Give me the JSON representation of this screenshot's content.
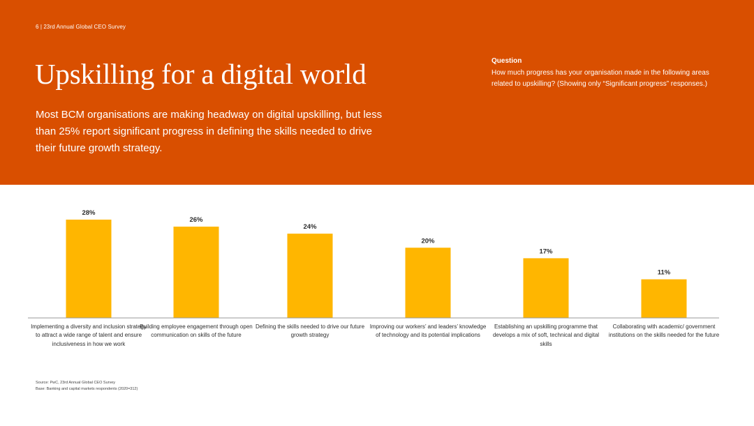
{
  "header": {
    "page_number_text": "6  |  23rd Annual Global CEO Survey",
    "title": "Upskilling for a digital world",
    "intro": "Most BCM organisations are making headway on digital upskilling, but less than 25% report significant progress in defining the skills needed to drive their future growth strategy."
  },
  "question": {
    "label": "Question",
    "text": "How much progress has your organisation made in the following areas related to upskilling? (Showing only “Significant progress” responses.)"
  },
  "colors": {
    "banner": "#d94f00",
    "bar": "#ffb600"
  },
  "chart_data": {
    "type": "bar",
    "categories": [
      "Implementing a diversity and inclusion strategy to attract a wide range of talent and ensure inclusiveness in how we work",
      "Building employee engagement through open communication on skills of the future",
      "Defining the skills needed to drive our future growth strategy",
      "Improving our workers’ and leaders’ knowledge of technology and its potential implications",
      "Establishing an upskilling programme that develops a mix of soft, technical and digital skills",
      "Collaborating with academic/ government institutions on the skills needed for the future"
    ],
    "values": [
      28,
      26,
      24,
      20,
      17,
      11
    ],
    "value_labels": [
      "28%",
      "26%",
      "24%",
      "20%",
      "17%",
      "11%"
    ],
    "ylim": [
      0,
      30
    ],
    "grid": false,
    "legend": "none"
  },
  "footnotes": {
    "source": "Source: PwC, 23rd Annual Global CEO Survey",
    "base": "Base: Banking and capital markets respondents (2020=312)"
  }
}
